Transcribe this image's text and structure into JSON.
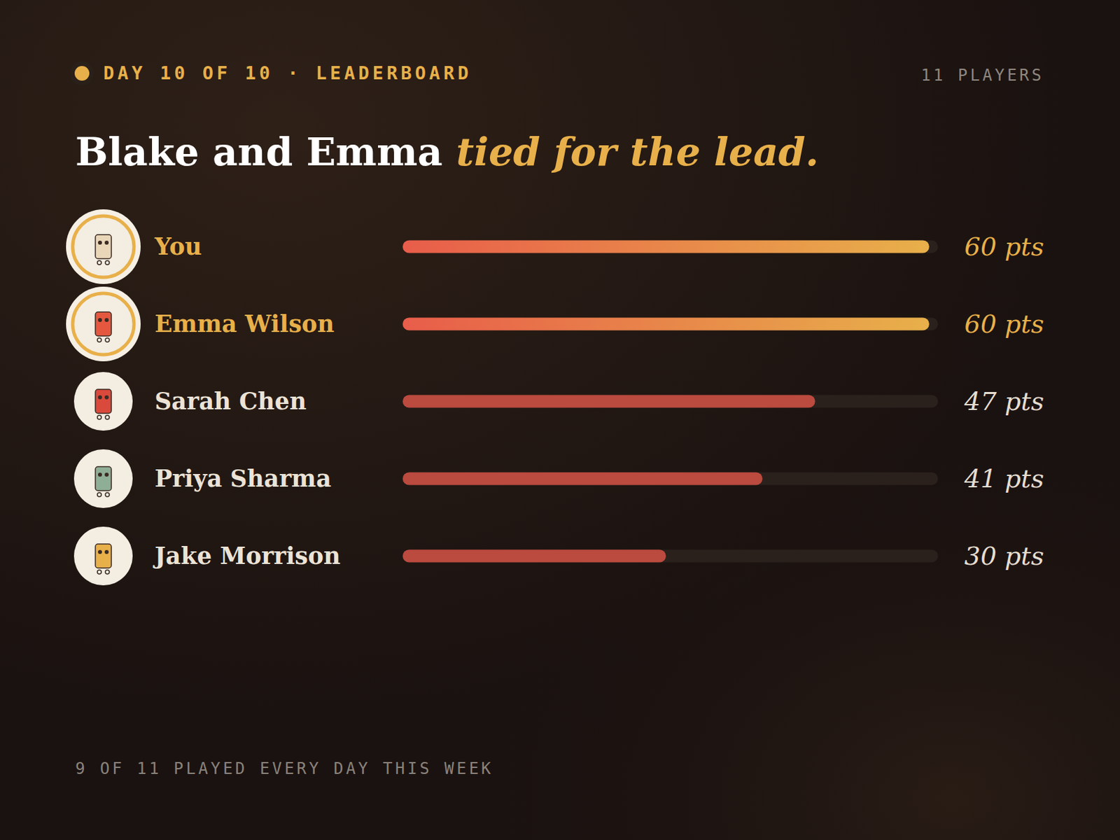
{
  "header": {
    "eyebrow": "DAY 10 OF 10 · LEADERBOARD",
    "players": "11 PLAYERS"
  },
  "footer": "9 OF 11 PLAYED EVERY DAY THIS WEEK",
  "chart_data": {
    "type": "bar",
    "orientation": "horizontal",
    "title": "Blake and Emma",
    "title_accent": "tied for the lead.",
    "categories": [
      "You",
      "Emma Wilson",
      "Sarah Chen",
      "Priya Sharma",
      "Jake Morrison"
    ],
    "values": [
      60,
      60,
      47,
      41,
      30
    ],
    "value_labels": [
      "60 pts",
      "60 pts",
      "47 pts",
      "41 pts",
      "30 pts"
    ],
    "colors": [
      "#e8b04a",
      "#e8b04a",
      "#bb4a3f",
      "#bb4a3f",
      "#bb4a3f"
    ],
    "xlim": [
      0,
      61
    ],
    "data_labels": true,
    "tick_labels": false,
    "grid": false
  }
}
